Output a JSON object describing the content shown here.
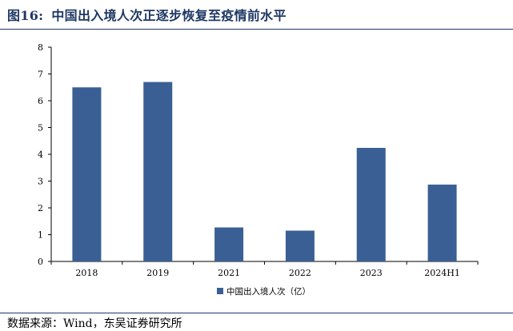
{
  "figure": {
    "number": "图16:",
    "title": "中国出入境人次正逐步恢复至疫情前水平"
  },
  "source": "数据来源：Wind，东吴证券研究所",
  "colors": {
    "bar": "#3a5f94",
    "title": "#1f3864",
    "axis": "#000000"
  },
  "chart_data": {
    "type": "bar",
    "categories": [
      "2018",
      "2019",
      "2021",
      "2022",
      "2023",
      "2024H1"
    ],
    "series": [
      {
        "name": "中国出入境人次（亿）",
        "values": [
          6.5,
          6.7,
          1.27,
          1.15,
          4.24,
          2.87
        ]
      }
    ],
    "ylim": [
      0,
      8
    ],
    "yticks": [
      "0",
      "1",
      "2",
      "3",
      "4",
      "5",
      "6",
      "7",
      "8"
    ],
    "legend_position": "bottom",
    "grid": false
  }
}
